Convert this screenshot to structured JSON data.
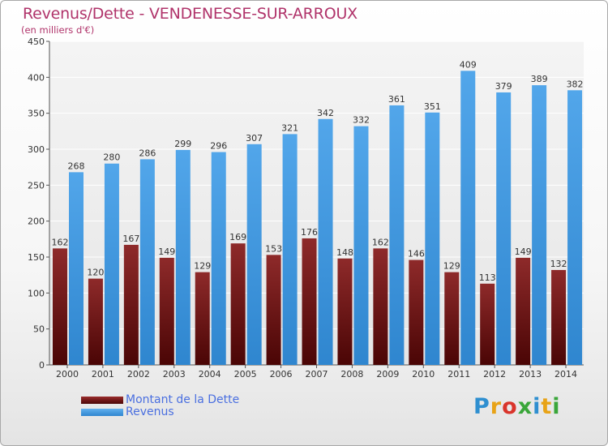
{
  "header": {
    "title": "Revenus/Dette - VENDENESSE-SUR-ARROUX",
    "subtitle": "(en milliers d'€)"
  },
  "colors": {
    "title": "#b0336a",
    "debt": "#7a1a1a",
    "revenue": "#3f95de",
    "legend_text": "#4a6fe0"
  },
  "chart_data": {
    "type": "bar",
    "title": "Revenus/Dette - VENDENESSE-SUR-ARROUX",
    "subtitle": "(en milliers d'€)",
    "xlabel": "",
    "ylabel": "",
    "categories": [
      "2000",
      "2001",
      "2002",
      "2003",
      "2004",
      "2005",
      "2006",
      "2007",
      "2008",
      "2009",
      "2010",
      "2011",
      "2012",
      "2013",
      "2014"
    ],
    "series": [
      {
        "name": "Montant de la Dette",
        "color": "#7a1a1a",
        "values": [
          162,
          120,
          167,
          149,
          129,
          169,
          153,
          176,
          148,
          162,
          146,
          129,
          113,
          149,
          132
        ],
        "labels": [
          "162",
          "120",
          "167",
          "149",
          "129",
          "169",
          "153",
          "176",
          "148",
          "162",
          "146",
          "129",
          "113",
          "149",
          "132"
        ]
      },
      {
        "name": "Revenus",
        "color": "#3f95de",
        "values": [
          268,
          280,
          286,
          299,
          296,
          307,
          321,
          342,
          332,
          361,
          351,
          409,
          379,
          389,
          382
        ],
        "labels": [
          "268",
          "280",
          "286",
          "299",
          "296",
          "307",
          "321",
          "342",
          "332",
          "361",
          "351",
          "409",
          "379",
          "389",
          "382"
        ]
      }
    ],
    "ylim": [
      0,
      450
    ],
    "yticks": [
      0,
      50,
      100,
      150,
      200,
      250,
      300,
      350,
      400,
      450
    ],
    "ytick_labels": [
      "0",
      "50",
      "100",
      "150",
      "200",
      "250",
      "300",
      "350",
      "400",
      "450"
    ],
    "grid": true,
    "legend_position": "bottom-left"
  },
  "legend": {
    "items": [
      {
        "label": "Montant de la Dette"
      },
      {
        "label": "Revenus"
      }
    ]
  },
  "logo": {
    "text": "Proxiti",
    "letters": [
      {
        "char": "P",
        "color": "#2f8fd0"
      },
      {
        "char": "r",
        "color": "#e8a317"
      },
      {
        "char": "o",
        "color": "#d9342b"
      },
      {
        "char": "x",
        "color": "#3aa63a"
      },
      {
        "char": "i",
        "color": "#2f8fd0"
      },
      {
        "char": "t",
        "color": "#e8a317"
      },
      {
        "char": "i",
        "color": "#3aa63a"
      }
    ]
  }
}
